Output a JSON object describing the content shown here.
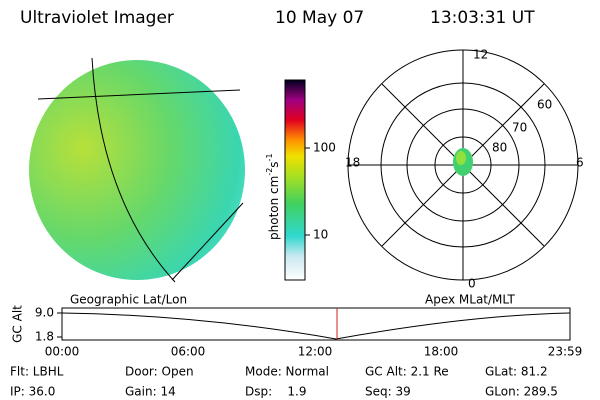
{
  "header": {
    "instrument": "Ultraviolet Imager",
    "date": "10 May 07",
    "time": "13:03:31 UT"
  },
  "colorbar": {
    "label": {
      "base": "photon cm",
      "exp1": "-2",
      "mid": "s",
      "exp2": "-1"
    },
    "ticks": [
      "100",
      "10"
    ]
  },
  "polar": {
    "mlt_labels": {
      "top": "12",
      "left": "18",
      "right": "6",
      "bottom": "0"
    },
    "lat_labels": [
      "60",
      "70",
      "80"
    ]
  },
  "projection_labels": {
    "left": "Geographic Lat/Lon",
    "right": "Apex MLat/MLT"
  },
  "altitude_plot": {
    "ylabel": "GC Alt",
    "yticks": [
      "9.0",
      "1.8"
    ],
    "xticks": [
      "00:00",
      "06:00",
      "12:00",
      "18:00",
      "23:59"
    ]
  },
  "info": {
    "row1": [
      "Flt: LBHL",
      "Door: Open",
      "Mode: Normal",
      "GC Alt: 2.1 Re",
      "GLat: 81.2"
    ],
    "row2": [
      "IP: 36.0",
      "Gain: 14",
      "Dsp:    1.9",
      "Seq: 39",
      "GLon: 289.5"
    ]
  }
}
